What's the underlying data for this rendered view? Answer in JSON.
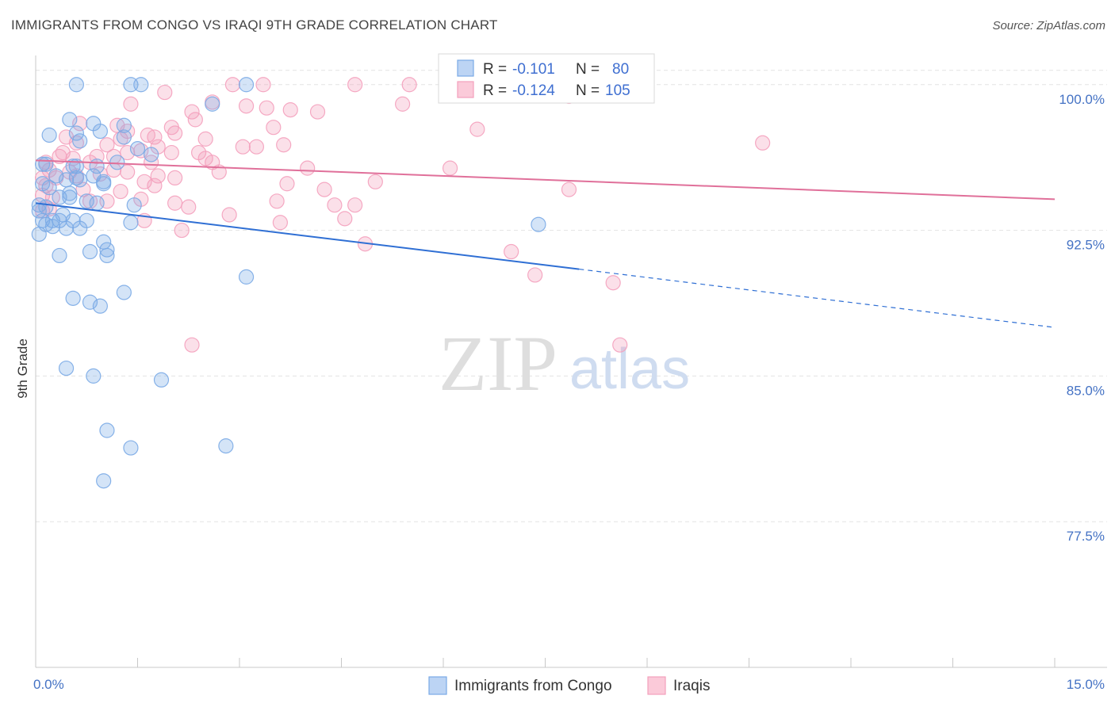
{
  "title": "IMMIGRANTS FROM CONGO VS IRAQI 9TH GRADE CORRELATION CHART",
  "source": "Source: ZipAtlas.com",
  "watermark": {
    "part1": "ZIP",
    "part2": "atlas"
  },
  "chart_data": {
    "type": "scatter",
    "xlabel": "",
    "ylabel": "9th Grade",
    "xlim": [
      0,
      15
    ],
    "ylim": [
      70.0,
      101.5
    ],
    "x_tick_labels": [
      {
        "value": 0,
        "label": "0.0%"
      },
      {
        "value": 15,
        "label": "15.0%"
      }
    ],
    "y_tick_labels": [
      {
        "value": 100.0,
        "label": "100.0%"
      },
      {
        "value": 92.5,
        "label": "92.5%"
      },
      {
        "value": 85.0,
        "label": "85.0%"
      },
      {
        "value": 77.5,
        "label": "77.5%"
      }
    ],
    "legend": {
      "r_label": "R =",
      "n_label": "N =",
      "entries": [
        {
          "r": "-0.101",
          "n": "80"
        },
        {
          "r": "-0.124",
          "n": "105"
        }
      ]
    },
    "series": [
      {
        "name": "Immigrants from Congo",
        "color": "#7aaae6",
        "line_color": "#2f6fd4",
        "trend": {
          "x0": 0.0,
          "y0": 93.9,
          "x1": 8.0,
          "y1": 90.5,
          "dash_to_x": 15.0,
          "dash_to_y": 87.5
        },
        "points": [
          [
            0.6,
            100.0
          ],
          [
            1.4,
            100.0
          ],
          [
            1.55,
            100.0
          ],
          [
            3.1,
            100.0
          ],
          [
            2.6,
            99.0
          ],
          [
            0.5,
            98.2
          ],
          [
            0.85,
            98.0
          ],
          [
            1.3,
            97.9
          ],
          [
            0.2,
            97.4
          ],
          [
            0.6,
            97.5
          ],
          [
            0.95,
            97.6
          ],
          [
            1.3,
            97.3
          ],
          [
            0.65,
            97.1
          ],
          [
            1.5,
            96.7
          ],
          [
            1.7,
            96.4
          ],
          [
            0.1,
            95.9
          ],
          [
            0.15,
            95.9
          ],
          [
            0.55,
            95.8
          ],
          [
            0.6,
            95.8
          ],
          [
            0.9,
            95.8
          ],
          [
            1.2,
            96.0
          ],
          [
            0.3,
            95.3
          ],
          [
            0.45,
            95.1
          ],
          [
            0.6,
            95.2
          ],
          [
            0.85,
            95.3
          ],
          [
            0.65,
            95.1
          ],
          [
            1.0,
            95.0
          ],
          [
            0.1,
            94.9
          ],
          [
            0.2,
            94.7
          ],
          [
            0.5,
            94.4
          ],
          [
            1.0,
            94.9
          ],
          [
            0.35,
            94.2
          ],
          [
            0.5,
            94.2
          ],
          [
            0.75,
            94.0
          ],
          [
            0.9,
            93.9
          ],
          [
            0.05,
            93.8
          ],
          [
            0.15,
            93.7
          ],
          [
            1.45,
            93.8
          ],
          [
            0.05,
            93.5
          ],
          [
            0.4,
            93.3
          ],
          [
            0.1,
            93.0
          ],
          [
            0.25,
            93.0
          ],
          [
            0.35,
            93.0
          ],
          [
            0.55,
            93.0
          ],
          [
            0.75,
            93.0
          ],
          [
            0.15,
            92.8
          ],
          [
            0.45,
            92.6
          ],
          [
            0.65,
            92.6
          ],
          [
            0.25,
            92.7
          ],
          [
            1.4,
            92.9
          ],
          [
            0.05,
            92.3
          ],
          [
            7.4,
            92.8
          ],
          [
            1.0,
            91.9
          ],
          [
            1.05,
            91.5
          ],
          [
            0.8,
            91.4
          ],
          [
            1.05,
            91.2
          ],
          [
            0.35,
            91.2
          ],
          [
            3.1,
            90.1
          ],
          [
            1.3,
            89.3
          ],
          [
            0.55,
            89.0
          ],
          [
            0.8,
            88.8
          ],
          [
            0.95,
            88.6
          ],
          [
            0.45,
            85.4
          ],
          [
            0.85,
            85.0
          ],
          [
            1.85,
            84.8
          ],
          [
            1.05,
            82.2
          ],
          [
            1.4,
            81.3
          ],
          [
            2.8,
            81.4
          ],
          [
            1.0,
            79.6
          ]
        ]
      },
      {
        "name": "Iraqis",
        "color": "#f4a0bc",
        "line_color": "#e0709a",
        "trend": {
          "x0": 0.0,
          "y0": 96.1,
          "x1": 15.0,
          "y1": 94.1
        },
        "points": [
          [
            2.9,
            100.0
          ],
          [
            3.35,
            100.0
          ],
          [
            4.7,
            100.0
          ],
          [
            5.5,
            100.0
          ],
          [
            7.85,
            99.4
          ],
          [
            1.9,
            99.6
          ],
          [
            1.4,
            99.0
          ],
          [
            2.6,
            99.1
          ],
          [
            3.1,
            98.9
          ],
          [
            3.4,
            98.8
          ],
          [
            3.75,
            98.7
          ],
          [
            4.15,
            98.6
          ],
          [
            5.4,
            99.0
          ],
          [
            2.3,
            98.6
          ],
          [
            2.35,
            98.2
          ],
          [
            0.65,
            98.0
          ],
          [
            1.2,
            97.9
          ],
          [
            2.0,
            97.8
          ],
          [
            2.05,
            97.5
          ],
          [
            3.5,
            97.8
          ],
          [
            1.35,
            97.6
          ],
          [
            1.65,
            97.4
          ],
          [
            1.75,
            97.3
          ],
          [
            0.45,
            97.3
          ],
          [
            6.5,
            97.7
          ],
          [
            10.7,
            97.0
          ],
          [
            0.6,
            97.0
          ],
          [
            1.25,
            97.2
          ],
          [
            2.5,
            97.2
          ],
          [
            1.05,
            96.9
          ],
          [
            1.35,
            96.5
          ],
          [
            0.4,
            96.5
          ],
          [
            1.55,
            96.6
          ],
          [
            1.8,
            96.8
          ],
          [
            3.05,
            96.8
          ],
          [
            3.25,
            96.8
          ],
          [
            3.65,
            96.9
          ],
          [
            0.35,
            96.3
          ],
          [
            0.55,
            96.2
          ],
          [
            0.9,
            96.3
          ],
          [
            1.15,
            96.3
          ],
          [
            0.8,
            96.0
          ],
          [
            2.0,
            96.5
          ],
          [
            2.4,
            96.5
          ],
          [
            2.5,
            96.2
          ],
          [
            2.6,
            96.0
          ],
          [
            0.15,
            96.0
          ],
          [
            1.7,
            96.0
          ],
          [
            4.0,
            95.7
          ],
          [
            6.1,
            95.7
          ],
          [
            0.2,
            95.6
          ],
          [
            0.5,
            95.5
          ],
          [
            0.95,
            95.4
          ],
          [
            1.15,
            95.6
          ],
          [
            1.35,
            95.5
          ],
          [
            1.8,
            95.3
          ],
          [
            2.7,
            95.5
          ],
          [
            0.1,
            95.2
          ],
          [
            0.3,
            95.2
          ],
          [
            0.6,
            95.3
          ],
          [
            2.05,
            95.2
          ],
          [
            1.6,
            95.0
          ],
          [
            0.15,
            94.8
          ],
          [
            0.7,
            94.6
          ],
          [
            1.25,
            94.5
          ],
          [
            1.75,
            94.8
          ],
          [
            3.7,
            94.9
          ],
          [
            4.25,
            94.6
          ],
          [
            5.0,
            95.0
          ],
          [
            7.85,
            94.6
          ],
          [
            0.1,
            94.3
          ],
          [
            0.25,
            94.2
          ],
          [
            0.8,
            94.0
          ],
          [
            1.05,
            94.0
          ],
          [
            1.55,
            94.1
          ],
          [
            2.05,
            93.9
          ],
          [
            2.25,
            93.7
          ],
          [
            3.55,
            94.0
          ],
          [
            4.4,
            93.8
          ],
          [
            4.7,
            93.8
          ],
          [
            0.1,
            93.5
          ],
          [
            0.2,
            93.6
          ],
          [
            2.85,
            93.3
          ],
          [
            4.55,
            93.1
          ],
          [
            1.6,
            93.0
          ],
          [
            3.6,
            92.9
          ],
          [
            2.15,
            92.5
          ],
          [
            4.85,
            91.8
          ],
          [
            7.0,
            91.4
          ],
          [
            7.35,
            90.2
          ],
          [
            8.5,
            89.8
          ],
          [
            2.3,
            86.6
          ],
          [
            8.6,
            86.6
          ]
        ]
      }
    ]
  }
}
